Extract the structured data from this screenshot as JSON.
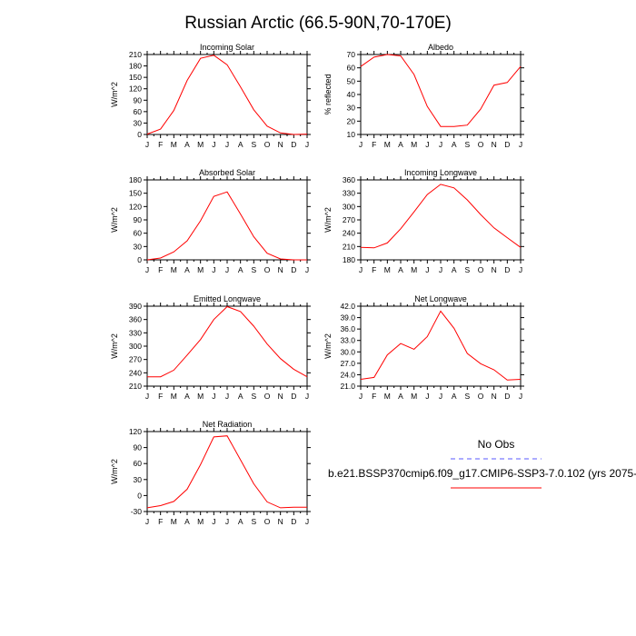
{
  "figure": {
    "title": "Russian Arctic (66.5-90N,70-170E)",
    "line_color": "#ff0000",
    "obs_dash_color": "#5a5aff"
  },
  "legend": {
    "obs_label": "No Obs",
    "model_label": "b.e21.BSSP370cmip6.f09_g17.CMIP6-SSP3-7.0.102 (yrs 2075-"
  },
  "chart_data": [
    {
      "type": "line",
      "title": "Incoming Solar",
      "xlabel": "",
      "ylabel": "W/m^2",
      "x": [
        "J",
        "F",
        "M",
        "A",
        "M",
        "J",
        "J",
        "A",
        "S",
        "O",
        "N",
        "D",
        "J"
      ],
      "ylim": [
        0,
        210
      ],
      "yticks": [
        0,
        30,
        60,
        90,
        120,
        150,
        180,
        210
      ],
      "ytick_labels": [
        "0",
        "30",
        "60",
        "90",
        "120",
        "150",
        "180",
        "210"
      ],
      "series": [
        {
          "values": [
            1,
            14,
            63,
            142,
            200,
            208,
            183,
            125,
            65,
            22,
            4,
            0,
            1
          ]
        }
      ]
    },
    {
      "type": "line",
      "title": "Albedo",
      "xlabel": "",
      "ylabel": "% reflected",
      "x": [
        "J",
        "F",
        "M",
        "A",
        "M",
        "J",
        "J",
        "A",
        "S",
        "O",
        "N",
        "D",
        "J"
      ],
      "ylim": [
        10,
        70
      ],
      "yticks": [
        10,
        20,
        30,
        40,
        50,
        60,
        70
      ],
      "ytick_labels": [
        "10",
        "20",
        "30",
        "40",
        "50",
        "60",
        "70"
      ],
      "series": [
        {
          "values": [
            61,
            68,
            70,
            69,
            55,
            31,
            16,
            16,
            17,
            29,
            47,
            49,
            61
          ]
        }
      ]
    },
    {
      "type": "line",
      "title": "Absorbed Solar",
      "xlabel": "",
      "ylabel": "W/m^2",
      "x": [
        "J",
        "F",
        "M",
        "A",
        "M",
        "J",
        "J",
        "A",
        "S",
        "O",
        "N",
        "D",
        "J"
      ],
      "ylim": [
        0,
        180
      ],
      "yticks": [
        0,
        30,
        60,
        90,
        120,
        150,
        180
      ],
      "ytick_labels": [
        "0",
        "30",
        "60",
        "90",
        "120",
        "150",
        "180"
      ],
      "series": [
        {
          "values": [
            0,
            4,
            18,
            43,
            88,
            143,
            153,
            103,
            52,
            15,
            2,
            0,
            0
          ]
        }
      ]
    },
    {
      "type": "line",
      "title": "Incoming Longwave",
      "xlabel": "",
      "ylabel": "W/m^2",
      "x": [
        "J",
        "F",
        "M",
        "A",
        "M",
        "J",
        "J",
        "A",
        "S",
        "O",
        "N",
        "D",
        "J"
      ],
      "ylim": [
        180,
        360
      ],
      "yticks": [
        180,
        210,
        240,
        270,
        300,
        330,
        360
      ],
      "ytick_labels": [
        "180",
        "210",
        "240",
        "270",
        "300",
        "330",
        "360"
      ],
      "series": [
        {
          "values": [
            208,
            207,
            218,
            250,
            288,
            327,
            350,
            342,
            315,
            282,
            252,
            230,
            208
          ]
        }
      ]
    },
    {
      "type": "line",
      "title": "Emitted Longwave",
      "xlabel": "",
      "ylabel": "W/m^2",
      "x": [
        "J",
        "F",
        "M",
        "A",
        "M",
        "J",
        "J",
        "A",
        "S",
        "O",
        "N",
        "D",
        "J"
      ],
      "ylim": [
        210,
        390
      ],
      "yticks": [
        210,
        240,
        270,
        300,
        330,
        360,
        390
      ],
      "ytick_labels": [
        "210",
        "240",
        "270",
        "300",
        "330",
        "360",
        "390"
      ],
      "series": [
        {
          "values": [
            231,
            231,
            246,
            280,
            315,
            360,
            389,
            378,
            345,
            305,
            272,
            248,
            231
          ]
        }
      ]
    },
    {
      "type": "line",
      "title": "Net Longwave",
      "xlabel": "",
      "ylabel": "W/m^2",
      "x": [
        "J",
        "F",
        "M",
        "A",
        "M",
        "J",
        "J",
        "A",
        "S",
        "O",
        "N",
        "D",
        "J"
      ],
      "ylim": [
        21,
        42
      ],
      "yticks": [
        21,
        24,
        27,
        30,
        33,
        36,
        39,
        42
      ],
      "ytick_labels": [
        "21.0",
        "24.0",
        "27.0",
        "30.0",
        "33.0",
        "36.0",
        "39.0",
        "42.0"
      ],
      "series": [
        {
          "values": [
            22.8,
            23.3,
            29.2,
            32.2,
            30.7,
            34.0,
            40.7,
            36.2,
            29.6,
            26.9,
            25.3,
            22.6,
            22.8
          ]
        }
      ]
    },
    {
      "type": "line",
      "title": "Net Radiation",
      "xlabel": "",
      "ylabel": "W/m^2",
      "x": [
        "J",
        "F",
        "M",
        "A",
        "M",
        "J",
        "J",
        "A",
        "S",
        "O",
        "N",
        "D",
        "J"
      ],
      "ylim": [
        -30,
        120
      ],
      "yticks": [
        -30,
        0,
        30,
        60,
        90,
        120
      ],
      "ytick_labels": [
        "-30",
        "0",
        "30",
        "60",
        "90",
        "120"
      ],
      "series": [
        {
          "values": [
            -23,
            -19,
            -11,
            12,
            58,
            110,
            112,
            67,
            22,
            -12,
            -23,
            -22,
            -22
          ]
        }
      ]
    }
  ]
}
